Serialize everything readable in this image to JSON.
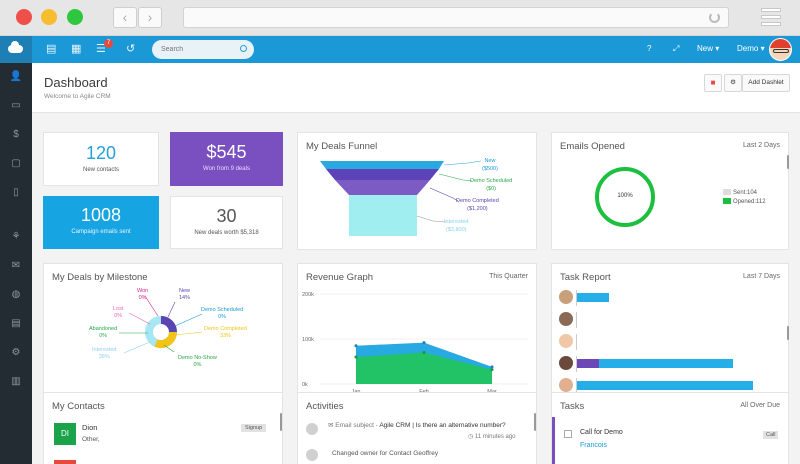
{
  "topbar": {
    "search_placeholder": "Search",
    "notification_count": "7",
    "new_label": "New",
    "user_label": "Demo"
  },
  "header": {
    "title": "Dashboard",
    "subtitle": "Welcome to Agile CRM",
    "add_dashlet_label": "Add Dashlet"
  },
  "tiles": {
    "contacts": {
      "value": "120",
      "label": "New contacts"
    },
    "won": {
      "value": "$545",
      "label": "Won from 9 deals"
    },
    "emails": {
      "value": "1008",
      "label": "Campaign emails sent"
    },
    "deals": {
      "value": "30",
      "label": "New deals worth $5,318"
    }
  },
  "funnel": {
    "title": "My Deals Funnel",
    "labels": [
      {
        "name": "New",
        "value": "($500)"
      },
      {
        "name": "Demo Scheduled",
        "value": "($0)"
      },
      {
        "name": "Demo Completed",
        "value": "($1,200)"
      },
      {
        "name": "Interested",
        "value": "($3,800)"
      }
    ]
  },
  "emails_opened": {
    "title": "Emails Opened",
    "range": "Last 2 Days",
    "percent": "100%",
    "legend": {
      "sent": "Sent:104",
      "opened": "Opened:112"
    },
    "colors": {
      "opened": "#1cbf3e",
      "sent": "#dddddd"
    }
  },
  "milestone": {
    "title": "My Deals by Milestone",
    "labels": [
      {
        "name": "Won",
        "pct": "0%",
        "color": "#d4238e"
      },
      {
        "name": "New",
        "pct": "14%",
        "color": "#5b45b0"
      },
      {
        "name": "Lost",
        "pct": "0%",
        "color": "#e86aa8"
      },
      {
        "name": "Demo Scheduled",
        "pct": "0%",
        "color": "#1a9bd7"
      },
      {
        "name": "Abandoned",
        "pct": "0%",
        "color": "#2aa84a"
      },
      {
        "name": "Demo Completed",
        "pct": "33%",
        "color": "#f2c319"
      },
      {
        "name": "Interested",
        "pct": "38%",
        "color": "#2aa84a"
      },
      {
        "name": "Demo No-Show",
        "pct": "0%",
        "color": "#2aa84a"
      }
    ]
  },
  "revenue": {
    "title": "Revenue Graph",
    "range": "This Quarter",
    "chart_data": {
      "type": "area",
      "categories": [
        "Jan",
        "Feb",
        "Mar"
      ],
      "yticks": [
        "200k",
        "100k",
        "0k"
      ],
      "series": [
        {
          "values": [
            85,
            92,
            38
          ],
          "color": "#28a9e1"
        },
        {
          "values": [
            60,
            70,
            32
          ],
          "color": "#22c266"
        }
      ],
      "ylim": [
        0,
        200
      ]
    }
  },
  "task_report": {
    "title": "Task Report",
    "range": "Last 7 Days",
    "bars": [
      {
        "purple": 0,
        "blue": 0.16
      },
      {
        "purple": 0,
        "blue": 0
      },
      {
        "purple": 0,
        "blue": 0
      },
      {
        "purple": 0.11,
        "blue": 0.67
      },
      {
        "purple": 0,
        "blue": 0.88
      },
      {
        "purple": 0,
        "blue": 0
      }
    ]
  },
  "contacts_panel": {
    "title": "My Contacts",
    "first_initials": "DI",
    "first_name": "Dion",
    "first_sub": "Other,",
    "first_tag": "Signup"
  },
  "activities": {
    "title": "Activities",
    "items": [
      {
        "text": "Email subject - ",
        "bold": "Agile CRM | Is there an alternative number?",
        "time": "11 minutes ago"
      },
      {
        "text": "Changed owner for Contact Geoffrey",
        "bold": "",
        "time": ""
      }
    ]
  },
  "tasks": {
    "title": "Tasks",
    "range": "All Over Due",
    "items": [
      {
        "name": "Call for Demo",
        "contact": "Francois",
        "tag": "Call"
      }
    ]
  }
}
